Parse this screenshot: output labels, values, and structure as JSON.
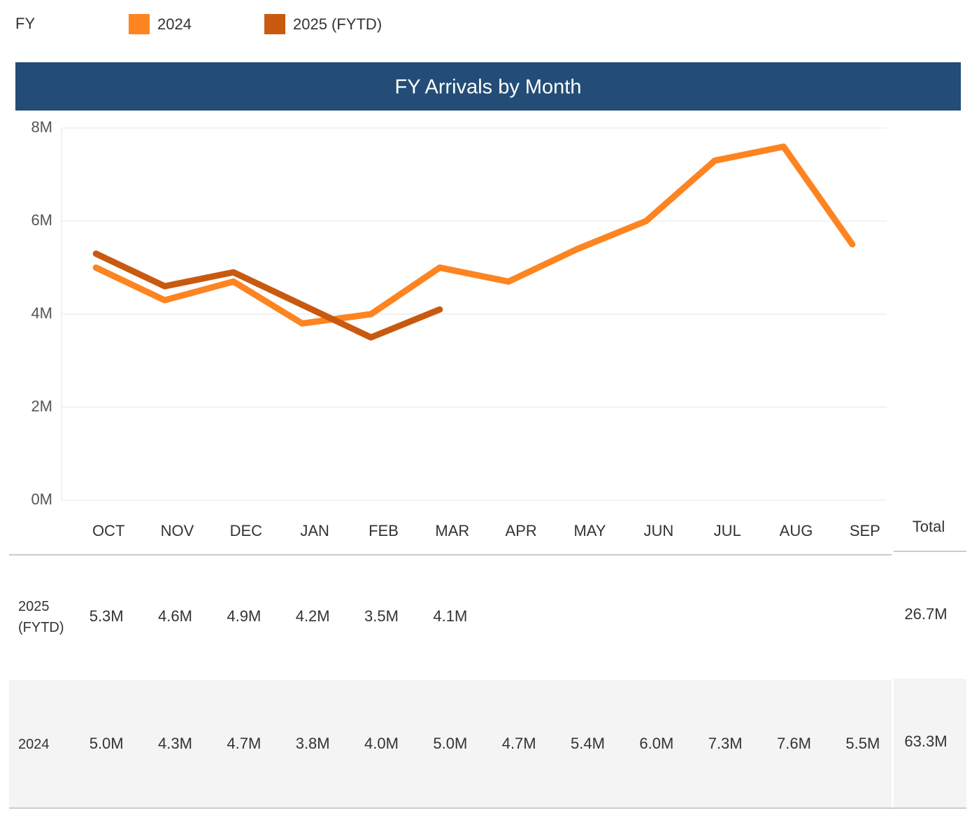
{
  "chart_data": {
    "type": "line",
    "title": "FY Arrivals by Month",
    "legend_title": "FY",
    "categories": [
      "OCT",
      "NOV",
      "DEC",
      "JAN",
      "FEB",
      "MAR",
      "APR",
      "MAY",
      "JUN",
      "JUL",
      "AUG",
      "SEP"
    ],
    "series": [
      {
        "name": "2024",
        "color": "#fd8421",
        "values": [
          5000000,
          4300000,
          4700000,
          3800000,
          4000000,
          5000000,
          4700000,
          5400000,
          6000000,
          7300000,
          7600000,
          5500000
        ],
        "value_labels": [
          "5.0M",
          "4.3M",
          "4.7M",
          "3.8M",
          "4.0M",
          "5.0M",
          "4.7M",
          "5.4M",
          "6.0M",
          "7.3M",
          "7.6M",
          "5.5M"
        ],
        "total": "63.3M"
      },
      {
        "name": "2025 (FYTD)",
        "color": "#c85a10",
        "values": [
          5300000,
          4600000,
          4900000,
          4200000,
          3500000,
          4100000,
          null,
          null,
          null,
          null,
          null,
          null
        ],
        "value_labels": [
          "5.3M",
          "4.6M",
          "4.9M",
          "4.2M",
          "3.5M",
          "4.1M",
          null,
          null,
          null,
          null,
          null,
          null
        ],
        "total": "26.7M"
      }
    ],
    "total_label": "Total",
    "ylim": [
      0,
      8000000
    ],
    "yticks": [
      {
        "value": 0,
        "label": "0M"
      },
      {
        "value": 2000000,
        "label": "2M"
      },
      {
        "value": 4000000,
        "label": "4M"
      },
      {
        "value": 6000000,
        "label": "6M"
      },
      {
        "value": 8000000,
        "label": "8M"
      }
    ],
    "grid": true
  }
}
